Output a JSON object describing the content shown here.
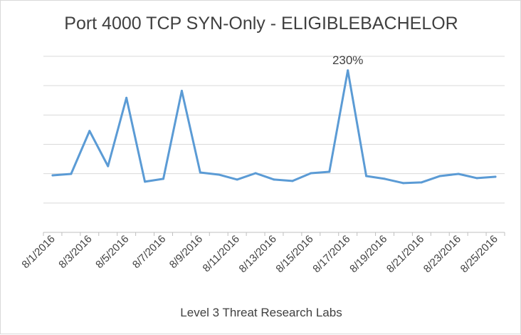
{
  "chart_data": {
    "type": "line",
    "title": "Port 4000 TCP SYN-Only - ELIGIBLEBACHELOR",
    "xlabel": "",
    "ylabel": "",
    "caption": "Level 3 Threat Research Labs",
    "grid": true,
    "legend": "none",
    "ylim": [
      0,
      250
    ],
    "y_ticks_labeled": false,
    "color": "#5b9bd5",
    "x": [
      "8/1/2016",
      "8/2/2016",
      "8/3/2016",
      "8/4/2016",
      "8/5/2016",
      "8/6/2016",
      "8/7/2016",
      "8/8/2016",
      "8/9/2016",
      "8/10/2016",
      "8/11/2016",
      "8/12/2016",
      "8/13/2016",
      "8/14/2016",
      "8/15/2016",
      "8/16/2016",
      "8/17/2016",
      "8/18/2016",
      "8/19/2016",
      "8/20/2016",
      "8/21/2016",
      "8/22/2016",
      "8/23/2016",
      "8/24/2016",
      "8/25/2016"
    ],
    "x_tick_labels": [
      "8/1/2016",
      "8/3/2016",
      "8/5/2016",
      "8/7/2016",
      "8/9/2016",
      "8/11/2016",
      "8/13/2016",
      "8/15/2016",
      "8/17/2016",
      "8/19/2016",
      "8/21/2016",
      "8/23/2016",
      "8/25/2016"
    ],
    "series": [
      {
        "name": "",
        "values": [
          81,
          83,
          144,
          94,
          191,
          72,
          76,
          201,
          85,
          82,
          75,
          84,
          75,
          73,
          84,
          86,
          230,
          80,
          76,
          70,
          71,
          80,
          83,
          77,
          79
        ]
      }
    ],
    "annotations": [
      {
        "index": 16,
        "text": "230%"
      }
    ]
  }
}
